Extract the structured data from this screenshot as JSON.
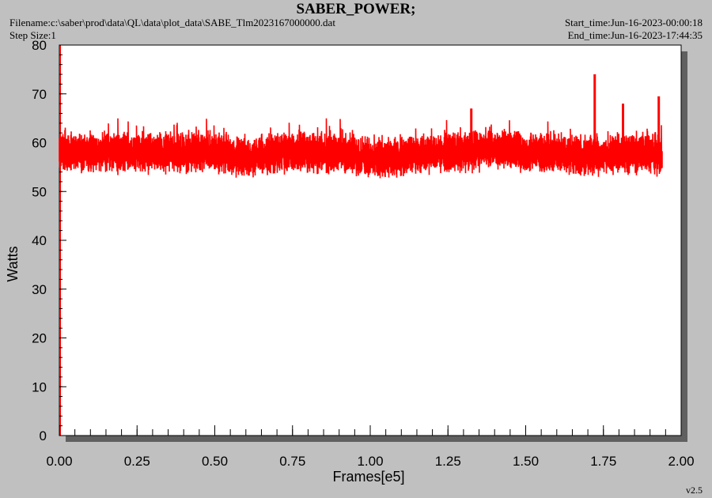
{
  "header": {
    "title": "SABER_POWER;",
    "filename": "Filename:c:\\saber\\prod\\data\\QL\\data\\plot_data\\SABE_Tlm2023167000000.dat",
    "step_size": "Step Size:1",
    "start_time": "Start_time:Jun-16-2023-00:00:18",
    "end_time": "End_time:Jun-16-2023-17:44:35",
    "version": "v2.5"
  },
  "colors": {
    "background": "#c0c0c0",
    "plot_area": "#ffffff",
    "series": "#ff0000",
    "axis": "#000000"
  },
  "chart_data": {
    "type": "line",
    "xlabel": "Frames[e5]",
    "ylabel": "Watts",
    "xlim": [
      0.0,
      2.0
    ],
    "ylim": [
      0,
      80
    ],
    "x_ticks": [
      "0.00",
      "0.25",
      "0.50",
      "0.75",
      "1.00",
      "1.25",
      "1.50",
      "1.75",
      "2.00"
    ],
    "y_ticks": [
      "0",
      "10",
      "20",
      "30",
      "40",
      "50",
      "60",
      "70",
      "80"
    ],
    "grid": false,
    "series": [
      {
        "color": "#ff0000",
        "x_range": [
          0.0,
          1.94
        ],
        "baseline_mean": 58,
        "band_low": 55,
        "band_high": 61,
        "x": [
          0.0,
          0.1,
          0.2,
          0.3,
          0.4,
          0.5,
          0.6,
          0.7,
          0.8,
          0.9,
          1.0,
          1.1,
          1.2,
          1.3,
          1.4,
          1.5,
          1.6,
          1.7,
          1.8,
          1.9,
          1.94
        ],
        "y": [
          58,
          58,
          58,
          58,
          58,
          58,
          57,
          58,
          58,
          58,
          57,
          57,
          58,
          58,
          59,
          58,
          58,
          57,
          58,
          58,
          57
        ],
        "spikes": [
          {
            "x": 1.325,
            "y": 67
          },
          {
            "x": 1.722,
            "y": 74
          },
          {
            "x": 1.813,
            "y": 68
          },
          {
            "x": 1.928,
            "y": 69.5
          }
        ]
      }
    ]
  }
}
